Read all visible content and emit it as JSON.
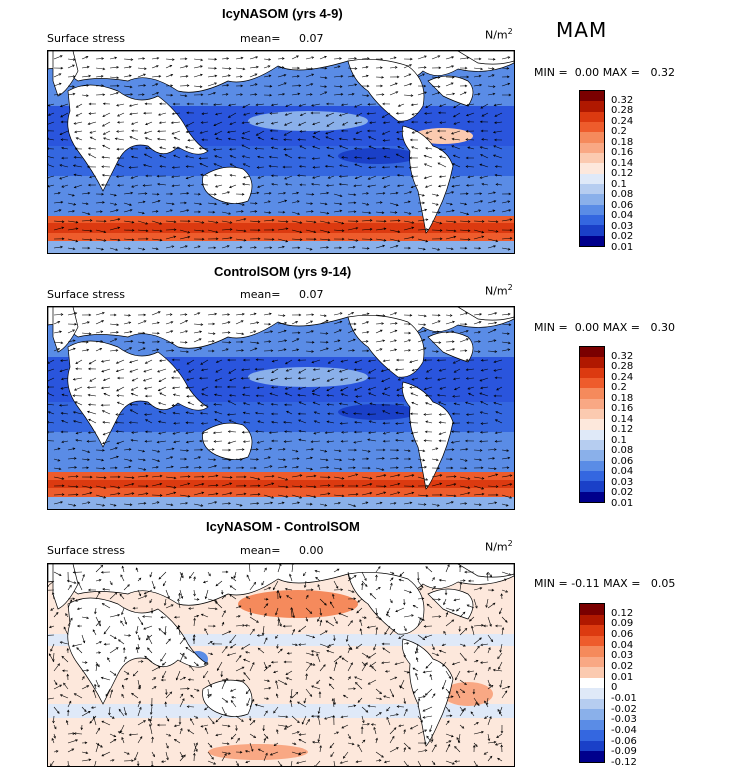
{
  "season": "MAM",
  "units": "N/m",
  "units_sup": "2",
  "panels": [
    {
      "title": "IcyNASOM (yrs 4-9)",
      "field": "Surface stress",
      "mean_label": "mean=",
      "mean": "0.07",
      "min_label": "MIN =",
      "min": "0.00",
      "max_label": "MAX =",
      "max": "0.32",
      "colorbar_labels": [
        "0.32",
        "0.28",
        "0.24",
        "0.2",
        "0.18",
        "0.16",
        "0.14",
        "0.12",
        "0.1",
        "0.08",
        "0.06",
        "0.04",
        "0.03",
        "0.02",
        "0.01"
      ]
    },
    {
      "title": "ControlSOM (yrs 9-14)",
      "field": "Surface stress",
      "mean_label": "mean=",
      "mean": "0.07",
      "min_label": "MIN =",
      "min": "0.00",
      "max_label": "MAX =",
      "max": "0.30",
      "colorbar_labels": [
        "0.32",
        "0.28",
        "0.24",
        "0.2",
        "0.18",
        "0.16",
        "0.14",
        "0.12",
        "0.1",
        "0.08",
        "0.06",
        "0.04",
        "0.03",
        "0.02",
        "0.01"
      ]
    },
    {
      "title": "IcyNASOM - ControlSOM",
      "field": "Surface stress",
      "mean_label": "mean=",
      "mean": "0.00",
      "min_label": "MIN =",
      "min": "-0.11",
      "max_label": "MAX =",
      "max": "0.05",
      "colorbar_labels": [
        "0.12",
        "0.09",
        "0.06",
        "0.04",
        "0.03",
        "0.02",
        "0.01",
        "0",
        "-0.01",
        "-0.02",
        "-0.03",
        "-0.04",
        "-0.06",
        "-0.09",
        "-0.12"
      ]
    }
  ],
  "colors": {
    "absolute": [
      "#7a0000",
      "#b01800",
      "#dc3a10",
      "#ee5c2c",
      "#f58a5c",
      "#f9a884",
      "#fbcab0",
      "#fde8dc",
      "#dfe9f8",
      "#b6cdf0",
      "#8ab0ea",
      "#5a8ce6",
      "#3467e0",
      "#1a40c8",
      "#00008c"
    ],
    "difference": [
      "#7a0000",
      "#b01800",
      "#dc3a10",
      "#ee5c2c",
      "#f58a5c",
      "#f9a884",
      "#fbcab0",
      "#ffffff",
      "#dfe9f8",
      "#b6cdf0",
      "#8ab0ea",
      "#5a8ce6",
      "#3467e0",
      "#1a40c8",
      "#00008c"
    ],
    "land": "#ffffff"
  }
}
